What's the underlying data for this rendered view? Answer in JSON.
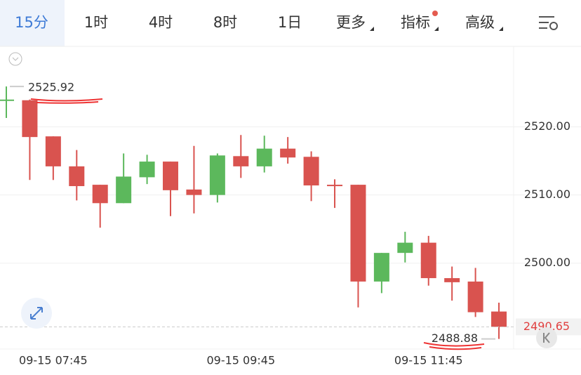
{
  "toolbar": {
    "tabs": [
      "15分",
      "1时",
      "4时",
      "8时",
      "1日",
      "更多",
      "指标",
      "高级"
    ],
    "active": 0
  },
  "chart_data": {
    "type": "candlestick",
    "categories": [
      null,
      null,
      "09-15 07:45",
      null,
      null,
      null,
      null,
      null,
      null,
      null,
      "09-15 09:45",
      null,
      null,
      null,
      null,
      null,
      null,
      null,
      "09-15 11:45",
      null,
      null,
      null
    ],
    "open": [
      2523.9,
      2523.9,
      2518.6,
      2514.2,
      2511.5,
      2508.8,
      2512.6,
      2514.9,
      2510.8,
      2510.0,
      2515.7,
      2514.2,
      2516.8,
      2515.6,
      2511.5,
      2511.5,
      2497.3,
      2501.5,
      2503.0,
      2497.8,
      2497.3,
      2492.9
    ],
    "high": [
      2525.92,
      2524.0,
      2518.6,
      2516.6,
      2511.5,
      2516.1,
      2515.9,
      2514.9,
      2517.2,
      2516.1,
      2518.8,
      2518.7,
      2518.5,
      2516.4,
      2512.3,
      2511.5,
      2501.5,
      2504.6,
      2504.0,
      2499.5,
      2499.3,
      2494.2
    ],
    "low": [
      2521.3,
      2512.2,
      2512.2,
      2509.2,
      2505.2,
      2508.8,
      2511.6,
      2506.9,
      2507.3,
      2508.9,
      2512.5,
      2513.3,
      2514.6,
      2509.1,
      2508.1,
      2493.5,
      2495.6,
      2500.1,
      2496.7,
      2494.5,
      2492.1,
      2488.88
    ],
    "close": [
      2524.0,
      2518.5,
      2514.2,
      2511.3,
      2508.8,
      2512.7,
      2514.9,
      2510.7,
      2510.0,
      2515.8,
      2514.2,
      2516.8,
      2515.5,
      2511.4,
      2511.4,
      2497.3,
      2501.5,
      2503.0,
      2497.8,
      2497.2,
      2492.8,
      2490.65
    ],
    "up_color": "#5cb85c",
    "down_color": "#d9534f",
    "ylim": [
      2487.4,
      2531.6
    ],
    "yticks": [
      {
        "value": 2500,
        "label": "2500.00"
      },
      {
        "value": 2510,
        "label": "2510.00"
      },
      {
        "value": 2520,
        "label": "2520.00"
      }
    ],
    "grid": true,
    "max_label": 2525.92,
    "min_label": 2488.88,
    "last_price": 2490.65
  }
}
